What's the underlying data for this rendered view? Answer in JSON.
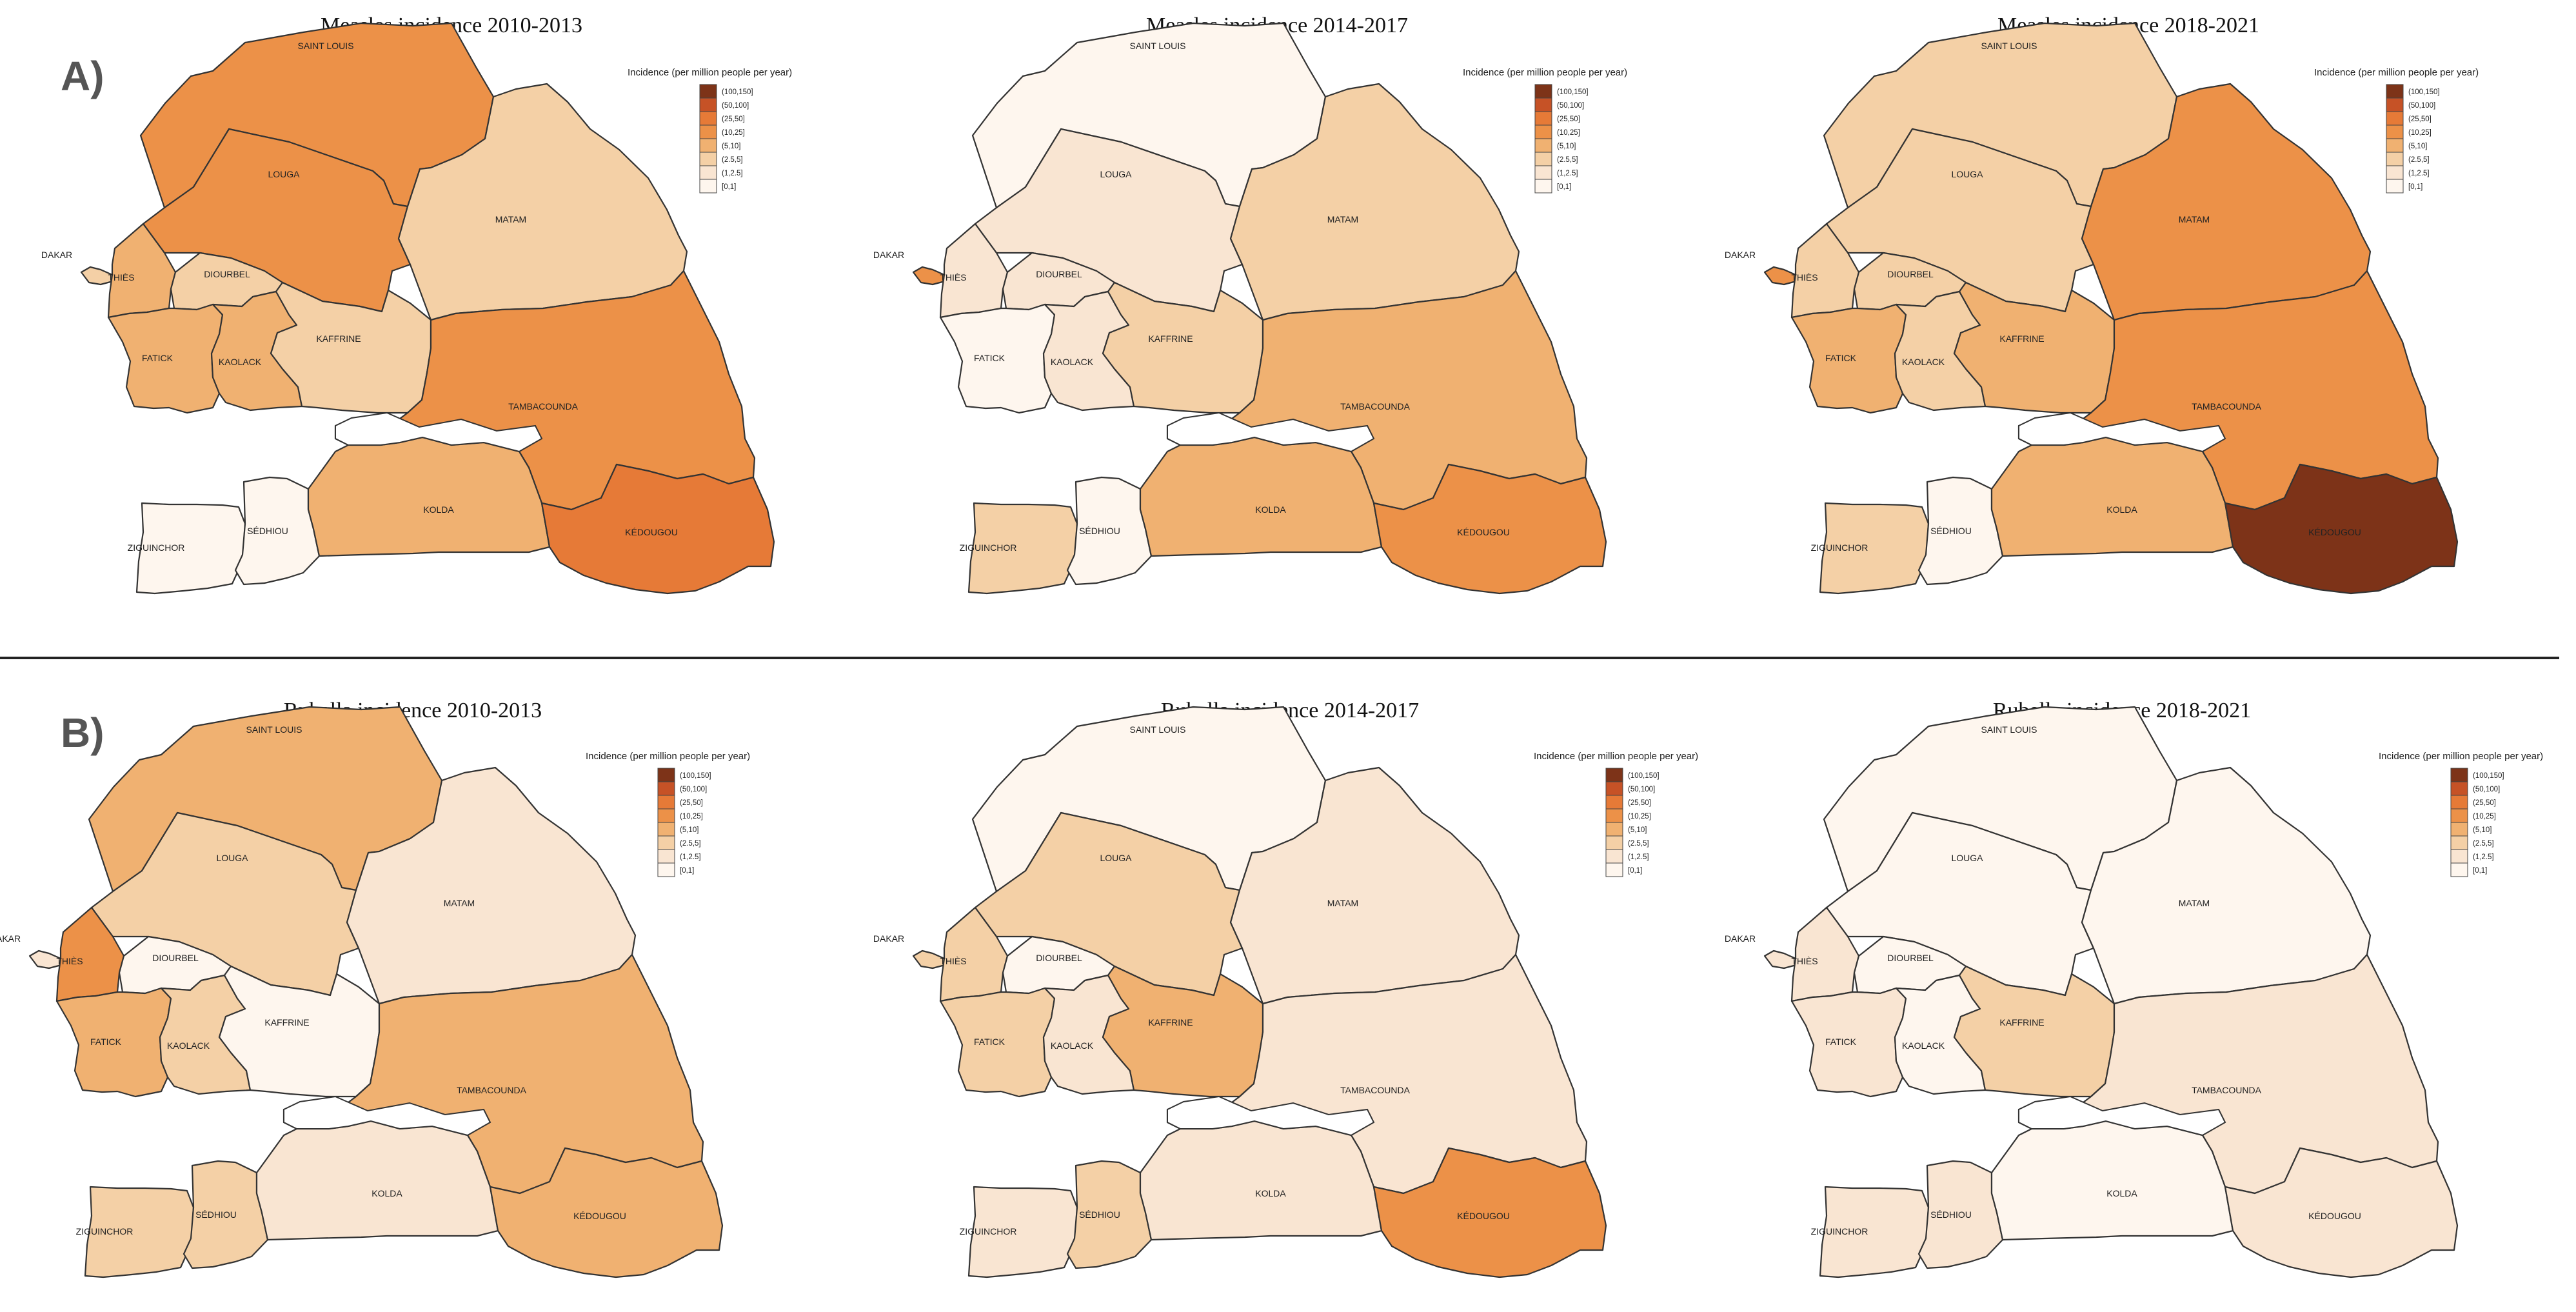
{
  "panels": [
    {
      "letter": "A)",
      "maps": [
        {
          "title": "Measles incidence 2010-2013",
          "classes": {
            "SAINT LOUIS": 4,
            "LOUGA": 4,
            "MATAM": 2,
            "DAKAR": 2,
            "THIÈS": 3,
            "DIOURBEL": 2,
            "FATICK": 3,
            "KAOLACK": 3,
            "KAFFRINE": 2,
            "TAMBACOUNDA": 4,
            "ZIGUINCHOR": 0,
            "SÉDHIOU": 0,
            "KOLDA": 3,
            "KÉDOUGOU": 5
          }
        },
        {
          "title": "Measles incidence 2014-2017",
          "classes": {
            "SAINT LOUIS": 0,
            "LOUGA": 1,
            "MATAM": 2,
            "DAKAR": 4,
            "THIÈS": 1,
            "DIOURBEL": 1,
            "FATICK": 0,
            "KAOLACK": 1,
            "KAFFRINE": 2,
            "TAMBACOUNDA": 3,
            "ZIGUINCHOR": 2,
            "SÉDHIOU": 0,
            "KOLDA": 3,
            "KÉDOUGOU": 4
          }
        },
        {
          "title": "Measles incidence 2018-2021",
          "classes": {
            "SAINT LOUIS": 2,
            "LOUGA": 2,
            "MATAM": 4,
            "DAKAR": 4,
            "THIÈS": 2,
            "DIOURBEL": 2,
            "FATICK": 3,
            "KAOLACK": 2,
            "KAFFRINE": 3,
            "TAMBACOUNDA": 4,
            "ZIGUINCHOR": 2,
            "SÉDHIOU": 0,
            "KOLDA": 3,
            "KÉDOUGOU": 7
          }
        }
      ]
    },
    {
      "letter": "B)",
      "maps": [
        {
          "title": "Rubella incidence 2010-2013",
          "classes": {
            "SAINT LOUIS": 3,
            "LOUGA": 2,
            "MATAM": 1,
            "DAKAR": 1,
            "THIÈS": 4,
            "DIOURBEL": 0,
            "FATICK": 3,
            "KAOLACK": 2,
            "KAFFRINE": 0,
            "TAMBACOUNDA": 3,
            "ZIGUINCHOR": 2,
            "SÉDHIOU": 2,
            "KOLDA": 1,
            "KÉDOUGOU": 3
          }
        },
        {
          "title": "Rubella incidence 2014-2017",
          "classes": {
            "SAINT LOUIS": 0,
            "LOUGA": 2,
            "MATAM": 1,
            "DAKAR": 2,
            "THIÈS": 2,
            "DIOURBEL": 0,
            "FATICK": 2,
            "KAOLACK": 1,
            "KAFFRINE": 3,
            "TAMBACOUNDA": 1,
            "ZIGUINCHOR": 1,
            "SÉDHIOU": 2,
            "KOLDA": 1,
            "KÉDOUGOU": 4
          }
        },
        {
          "title": "Rubella incidence 2018-2021",
          "classes": {
            "SAINT LOUIS": 0,
            "LOUGA": 0,
            "MATAM": 0,
            "DAKAR": 1,
            "THIÈS": 1,
            "DIOURBEL": 0,
            "FATICK": 1,
            "KAOLACK": 0,
            "KAFFRINE": 2,
            "TAMBACOUNDA": 1,
            "ZIGUINCHOR": 1,
            "SÉDHIOU": 1,
            "KOLDA": 0,
            "KÉDOUGOU": 1
          }
        }
      ]
    }
  ],
  "legend": {
    "title": "Incidence (per million people per year)",
    "classes": [
      "[0,1]",
      "(1,2.5]",
      "(2.5,5]",
      "(5,10]",
      "(10,25]",
      "(25,50]",
      "(50,100]",
      "(100,150]"
    ],
    "colors": [
      "#fef6ee",
      "#f9e5d2",
      "#f4d0a6",
      "#f0b171",
      "#ec9148",
      "#e67a37",
      "#c65226",
      "#7d3318"
    ]
  }
}
